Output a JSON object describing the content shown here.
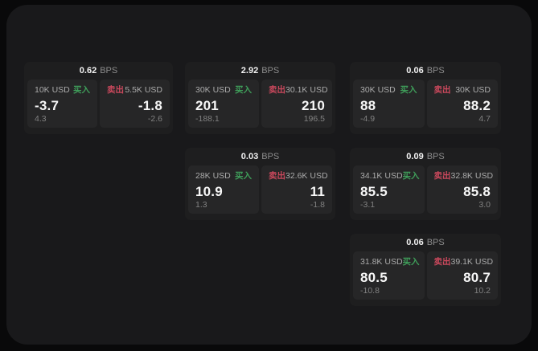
{
  "colors": {
    "buy_green": "#3f9e5a",
    "sell_red": "#c9485c",
    "card_bg": "#1e1e1f",
    "panel_bg": "#262627",
    "surface_bg": "#19191b"
  },
  "cards": [
    {
      "bps": "0.62",
      "unit": "BPS",
      "buy": {
        "amount": "10K USD",
        "tag": "买入",
        "price": "-3.7",
        "sub": "4.3"
      },
      "sell": {
        "tag": "卖出",
        "amount": "5.5K USD",
        "price": "-1.8",
        "sub": "-2.6"
      }
    },
    {
      "bps": "2.92",
      "unit": "BPS",
      "buy": {
        "amount": "30K USD",
        "tag": "买入",
        "price": "201",
        "sub": "-188.1"
      },
      "sell": {
        "tag": "卖出",
        "amount": "30.1K USD",
        "price": "210",
        "sub": "196.5"
      }
    },
    {
      "bps": "0.06",
      "unit": "BPS",
      "buy": {
        "amount": "30K USD",
        "tag": "买入",
        "price": "88",
        "sub": "-4.9"
      },
      "sell": {
        "tag": "卖出",
        "amount": "30K USD",
        "price": "88.2",
        "sub": "4.7"
      }
    },
    {
      "bps": "0.03",
      "unit": "BPS",
      "buy": {
        "amount": "28K USD",
        "tag": "买入",
        "price": "10.9",
        "sub": "1.3"
      },
      "sell": {
        "tag": "卖出",
        "amount": "32.6K USD",
        "price": "11",
        "sub": "-1.8"
      }
    },
    {
      "bps": "0.09",
      "unit": "BPS",
      "buy": {
        "amount": "34.1K USD",
        "tag": "买入",
        "price": "85.5",
        "sub": "-3.1"
      },
      "sell": {
        "tag": "卖出",
        "amount": "32.8K USD",
        "price": "85.8",
        "sub": "3.0"
      }
    },
    {
      "bps": "0.06",
      "unit": "BPS",
      "buy": {
        "amount": "31.8K USD",
        "tag": "买入",
        "price": "80.5",
        "sub": "-10.8"
      },
      "sell": {
        "tag": "卖出",
        "amount": "39.1K USD",
        "price": "80.7",
        "sub": "10.2"
      }
    }
  ]
}
